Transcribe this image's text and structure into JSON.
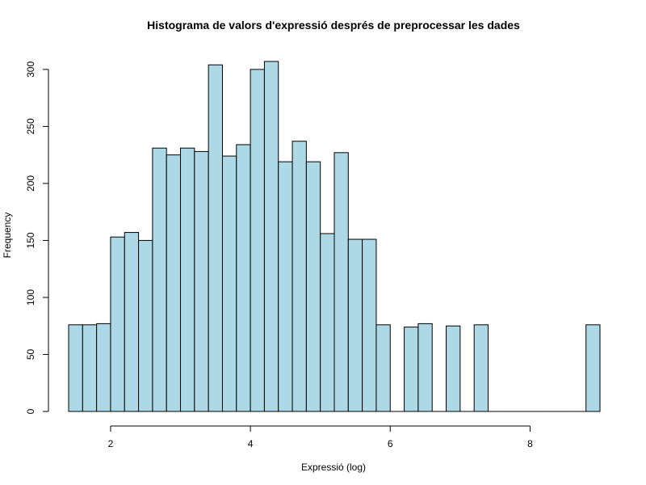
{
  "chart_data": {
    "type": "bar",
    "title": "Histograma de valors d'expressió després de preprocessar les dades",
    "xlabel": "Expressió (log)",
    "ylabel": "Frequency",
    "bin_width": 0.2,
    "x_start": 1.4,
    "xlim": [
      1.4,
      9.0
    ],
    "ylim": [
      0,
      307
    ],
    "x_ticks": [
      2,
      4,
      6,
      8
    ],
    "y_ticks": [
      0,
      50,
      100,
      150,
      200,
      250,
      300
    ],
    "values": [
      76,
      76,
      77,
      153,
      157,
      150,
      231,
      225,
      231,
      228,
      304,
      224,
      234,
      300,
      307,
      219,
      237,
      219,
      156,
      227,
      151,
      151,
      76,
      0,
      74,
      77,
      0,
      75,
      0,
      76,
      0,
      0,
      0,
      0,
      0,
      0,
      0,
      76
    ],
    "fill_color": "#add8e6",
    "edge_color": "#000000",
    "grid": false,
    "legend": "none"
  }
}
